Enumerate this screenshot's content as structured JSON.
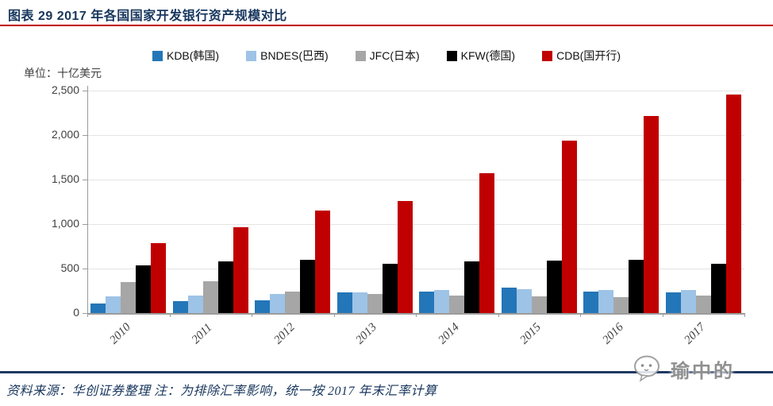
{
  "header": {
    "title": "图表  29 2017 年各国国家开发银行资产规模对比"
  },
  "chart_data": {
    "type": "bar",
    "title": "2017 年各国国家开发银行资产规模对比",
    "unit_label": "单位：十亿美元",
    "categories": [
      "2010",
      "2011",
      "2012",
      "2013",
      "2014",
      "2015",
      "2016",
      "2017"
    ],
    "series": [
      {
        "name": "KDB(韩国)",
        "color": "#2376B8",
        "values": [
          105,
          135,
          145,
          235,
          245,
          290,
          240,
          230
        ]
      },
      {
        "name": "BNDES(巴西)",
        "color": "#9DC3E6",
        "values": [
          185,
          195,
          210,
          230,
          255,
          270,
          260,
          255
        ]
      },
      {
        "name": "JFC(日本)",
        "color": "#A6A6A6",
        "values": [
          345,
          360,
          240,
          215,
          200,
          190,
          180,
          200
        ]
      },
      {
        "name": "KFW(德国)",
        "color": "#000000",
        "values": [
          535,
          580,
          600,
          550,
          580,
          590,
          600,
          550
        ]
      },
      {
        "name": "CDB(国开行)",
        "color": "#C00000",
        "values": [
          790,
          960,
          1150,
          1260,
          1575,
          1940,
          2210,
          2455
        ]
      }
    ],
    "ylim": [
      0,
      2500
    ],
    "ytick_interval": 500,
    "ytick_labels": [
      "0",
      "500",
      "1,000",
      "1,500",
      "2,000",
      "2,500"
    ],
    "grid": true,
    "legend_position": "top"
  },
  "footer": {
    "source_note": "资料来源：华创证券整理  注：为排除汇率影响，统一按 2017 年末汇率计算"
  },
  "watermark": {
    "text": "瑜中的"
  },
  "colors": {
    "title_navy": "#17365D",
    "rule_red": "#C00000",
    "footer_rule_navy": "#1F3864",
    "axis_gray": "#9B9B9B",
    "gridline_gray": "#E4E4E4"
  }
}
